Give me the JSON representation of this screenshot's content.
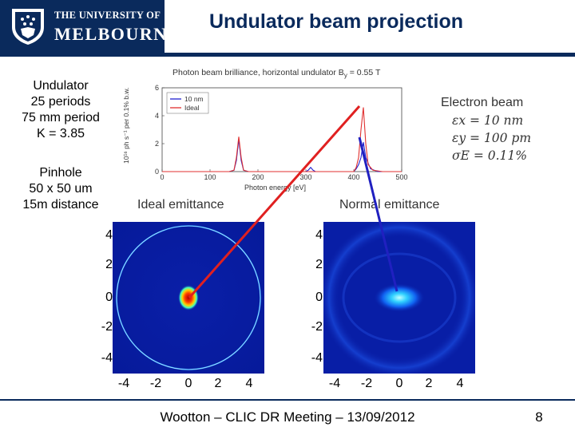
{
  "header": {
    "university_line1": "THE UNIVERSITY OF",
    "university_line2": "MELBOURNE",
    "title": "Undulator beam projection"
  },
  "left_panel": {
    "undulator": [
      "Undulator",
      "25 periods",
      "75 mm period",
      "K = 3.85"
    ],
    "pinhole": [
      "Pinhole",
      "50 x 50 um",
      "15m distance"
    ]
  },
  "electron_beam": {
    "title": "Electron beam",
    "rows": [
      "εx = 10 nm",
      "εy = 100 pm",
      "σE = 0.11%"
    ]
  },
  "chart_data": [
    {
      "type": "line",
      "title": "Photon beam brilliance, horizontal undulator B",
      "title_subscript": "y",
      "title_suffix": " = 0.55 T",
      "xlabel": "Photon energy [eV]",
      "ylabel": "10¹⁶ ph s⁻¹ per 0.1% b.w.",
      "xlim": [
        0,
        500
      ],
      "ylim": [
        0,
        6
      ],
      "xticks": [
        "0",
        "100",
        "200",
        "300",
        "400",
        "500"
      ],
      "yticks": [
        "0",
        "2",
        "4",
        "6"
      ],
      "legend_placement": "top-left",
      "series": [
        {
          "name": "10 nm",
          "color": "#2020d0",
          "x": [
            0,
            140,
            150,
            155,
            160,
            165,
            170,
            180,
            300,
            305,
            310,
            315,
            320,
            400,
            405,
            410,
            415,
            420,
            425,
            435,
            450,
            500
          ],
          "y": [
            0,
            0,
            0.1,
            0.8,
            2.3,
            0.8,
            0.1,
            0,
            0,
            0.1,
            0.3,
            0.1,
            0,
            0,
            0.2,
            0.5,
            1.0,
            2.1,
            1.0,
            0.2,
            0,
            0
          ]
        },
        {
          "name": "Ideal",
          "color": "#e03030",
          "x": [
            0,
            140,
            150,
            155,
            160,
            165,
            170,
            180,
            400,
            405,
            410,
            415,
            420,
            425,
            430,
            440,
            460,
            470,
            500
          ],
          "y": [
            0,
            0,
            0.1,
            1.0,
            2.5,
            1.0,
            0.1,
            0,
            0,
            0.3,
            1.0,
            3.0,
            4.6,
            2.0,
            0.5,
            0.1,
            0,
            0,
            0
          ]
        }
      ]
    },
    {
      "type": "heatmap",
      "title": "Ideal emittance",
      "xticks": [
        "-4",
        "-2",
        "0",
        "2",
        "4"
      ],
      "yticks": [
        "4",
        "2",
        "0",
        "-2",
        "-4"
      ],
      "xlim": [
        -5,
        5
      ],
      "ylim": [
        -5,
        5
      ]
    },
    {
      "type": "heatmap",
      "title": "Normal emittance",
      "xticks": [
        "-4",
        "-2",
        "0",
        "2",
        "4"
      ],
      "yticks": [
        "4",
        "2",
        "0",
        "-2",
        "-4"
      ],
      "xlim": [
        -5,
        5
      ],
      "ylim": [
        -5,
        5
      ]
    }
  ],
  "footer": {
    "text": "Wootton – CLIC DR Meeting – 13/09/2012",
    "page": "8"
  }
}
